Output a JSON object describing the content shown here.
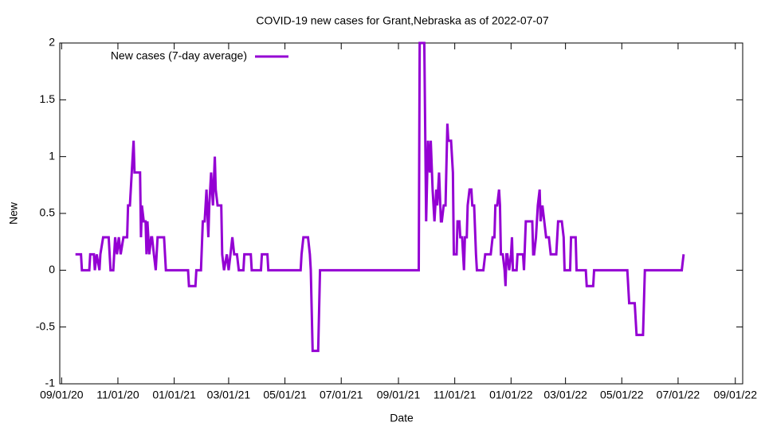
{
  "chart_data": {
    "type": "line",
    "title": "COVID-19 new cases for Grant,Nebraska as of 2022-07-07",
    "xlabel": "Date",
    "ylabel": "New",
    "legend": "top-left",
    "grid": false,
    "xlim": [
      "2020-08-30",
      "2022-09-09"
    ],
    "ylim": [
      -1,
      2
    ],
    "yticks": [
      -1,
      -0.5,
      0,
      0.5,
      1,
      1.5,
      2
    ],
    "xticks": [
      {
        "value": "2020-09-01",
        "label": "09/01/20"
      },
      {
        "value": "2020-11-01",
        "label": "11/01/20"
      },
      {
        "value": "2021-01-01",
        "label": "01/01/21"
      },
      {
        "value": "2021-03-01",
        "label": "03/01/21"
      },
      {
        "value": "2021-05-01",
        "label": "05/01/21"
      },
      {
        "value": "2021-07-01",
        "label": "07/01/21"
      },
      {
        "value": "2021-09-01",
        "label": "09/01/21"
      },
      {
        "value": "2021-11-01",
        "label": "11/01/21"
      },
      {
        "value": "2022-01-01",
        "label": "01/01/22"
      },
      {
        "value": "2022-03-01",
        "label": "03/01/22"
      },
      {
        "value": "2022-05-01",
        "label": "05/01/22"
      },
      {
        "value": "2022-07-01",
        "label": "07/01/22"
      },
      {
        "value": "2022-09-01",
        "label": "09/01/22"
      }
    ],
    "x": [
      "2020-09-16",
      "2020-09-22",
      "2020-09-23",
      "2020-10-01",
      "2020-10-02",
      "2020-10-06",
      "2020-10-07",
      "2020-10-09",
      "2020-10-12",
      "2020-10-13",
      "2020-10-16",
      "2020-10-22",
      "2020-10-24",
      "2020-10-27",
      "2020-10-29",
      "2020-10-31",
      "2020-11-02",
      "2020-11-04",
      "2020-11-07",
      "2020-11-11",
      "2020-11-12",
      "2020-11-14",
      "2020-11-16",
      "2020-11-18",
      "2020-11-19",
      "2020-11-25",
      "2020-11-26",
      "2020-11-27",
      "2020-11-29",
      "2020-12-01",
      "2020-12-02",
      "2020-12-03",
      "2020-12-05",
      "2020-12-07",
      "2020-12-08",
      "2020-12-10",
      "2020-12-12",
      "2020-12-14",
      "2020-12-21",
      "2020-12-23",
      "2021-01-16",
      "2021-01-17",
      "2021-01-24",
      "2021-01-25",
      "2021-01-30",
      "2021-02-01",
      "2021-02-03",
      "2021-02-05",
      "2021-02-07",
      "2021-02-08",
      "2021-02-10",
      "2021-02-12",
      "2021-02-14",
      "2021-02-15",
      "2021-02-17",
      "2021-02-21",
      "2021-02-22",
      "2021-02-24",
      "2021-02-27",
      "2021-03-01",
      "2021-03-03",
      "2021-03-05",
      "2021-03-07",
      "2021-03-10",
      "2021-03-12",
      "2021-03-17",
      "2021-03-18",
      "2021-03-25",
      "2021-03-26",
      "2021-04-05",
      "2021-04-06",
      "2021-04-12",
      "2021-04-13",
      "2021-05-18",
      "2021-05-19",
      "2021-05-21",
      "2021-05-26",
      "2021-05-28",
      "2021-05-29",
      "2021-05-31",
      "2021-06-06",
      "2021-06-08",
      "2021-09-23",
      "2021-09-24",
      "2021-09-29",
      "2021-10-01",
      "2021-10-03",
      "2021-10-05",
      "2021-10-06",
      "2021-10-08",
      "2021-10-10",
      "2021-10-12",
      "2021-10-13",
      "2021-10-15",
      "2021-10-17",
      "2021-10-18",
      "2021-10-20",
      "2021-10-22",
      "2021-10-24",
      "2021-10-25",
      "2021-10-28",
      "2021-10-30",
      "2021-10-31",
      "2021-11-03",
      "2021-11-04",
      "2021-11-06",
      "2021-11-07",
      "2021-11-09",
      "2021-11-11",
      "2021-11-12",
      "2021-11-14",
      "2021-11-15",
      "2021-11-17",
      "2021-11-19",
      "2021-11-20",
      "2021-11-22",
      "2021-11-24",
      "2021-11-25",
      "2021-12-02",
      "2021-12-04",
      "2021-12-10",
      "2021-12-12",
      "2021-12-14",
      "2021-12-15",
      "2021-12-17",
      "2021-12-19",
      "2021-12-20",
      "2021-12-21",
      "2021-12-23",
      "2021-12-25",
      "2021-12-26",
      "2021-12-27",
      "2021-12-28",
      "2021-12-30",
      "2022-01-01",
      "2022-01-02",
      "2022-01-03",
      "2022-01-07",
      "2022-01-08",
      "2022-01-14",
      "2022-01-15",
      "2022-01-17",
      "2022-01-24",
      "2022-01-25",
      "2022-01-26",
      "2022-01-28",
      "2022-01-30",
      "2022-02-01",
      "2022-02-02",
      "2022-02-04",
      "2022-02-06",
      "2022-02-08",
      "2022-02-11",
      "2022-02-13",
      "2022-02-19",
      "2022-02-21",
      "2022-02-25",
      "2022-02-27",
      "2022-02-28",
      "2022-03-06",
      "2022-03-07",
      "2022-03-12",
      "2022-03-13",
      "2022-03-23",
      "2022-03-24",
      "2022-03-31",
      "2022-04-01",
      "2022-05-07",
      "2022-05-09",
      "2022-05-15",
      "2022-05-17",
      "2022-05-24",
      "2022-05-26",
      "2022-07-05",
      "2022-07-07"
    ],
    "series": [
      {
        "name": "New cases (7-day average)",
        "color": "#9400d3",
        "values": [
          0.14,
          0.14,
          0,
          0,
          0.14,
          0.14,
          0,
          0.14,
          0,
          0.14,
          0.29,
          0.29,
          0,
          0,
          0.29,
          0.14,
          0.29,
          0.14,
          0.29,
          0.29,
          0.57,
          0.57,
          0.86,
          1.14,
          0.86,
          0.86,
          0.29,
          0.57,
          0.43,
          0.43,
          0.14,
          0.43,
          0.14,
          0.29,
          0.29,
          0.14,
          0,
          0.29,
          0.29,
          0,
          0,
          -0.14,
          -0.14,
          0,
          0,
          0.43,
          0.43,
          0.71,
          0.29,
          0.57,
          0.86,
          0.57,
          1,
          0.71,
          0.57,
          0.57,
          0.14,
          0,
          0.14,
          0,
          0.14,
          0.29,
          0.14,
          0.14,
          0,
          0,
          0.14,
          0.14,
          0,
          0,
          0.14,
          0.14,
          0,
          0,
          0.14,
          0.29,
          0.29,
          0.14,
          0,
          -0.71,
          -0.71,
          0,
          0,
          2,
          2,
          0.43,
          1.14,
          0.86,
          1.14,
          0.71,
          0.43,
          0.71,
          0.57,
          0.86,
          0.43,
          0.43,
          0.57,
          0.57,
          1.29,
          1.14,
          1.14,
          0.86,
          0.14,
          0.14,
          0.43,
          0.43,
          0.29,
          0.29,
          0,
          0.29,
          0.29,
          0.57,
          0.71,
          0.71,
          0.57,
          0.57,
          0.14,
          0,
          0,
          0.14,
          0.14,
          0.29,
          0.29,
          0.57,
          0.57,
          0.71,
          0.57,
          0.14,
          0.14,
          0,
          -0.14,
          0.14,
          0.14,
          0,
          0.14,
          0.29,
          0,
          0,
          0.14,
          0.14,
          0,
          0.43,
          0.43,
          0.14,
          0.14,
          0.29,
          0.57,
          0.71,
          0.43,
          0.57,
          0.43,
          0.29,
          0.29,
          0.14,
          0.14,
          0.43,
          0.43,
          0.29,
          0,
          0,
          0.29,
          0.29,
          0,
          0,
          -0.14,
          -0.14,
          0,
          0,
          -0.29,
          -0.29,
          -0.57,
          -0.57,
          0,
          0,
          0.14
        ]
      }
    ]
  }
}
